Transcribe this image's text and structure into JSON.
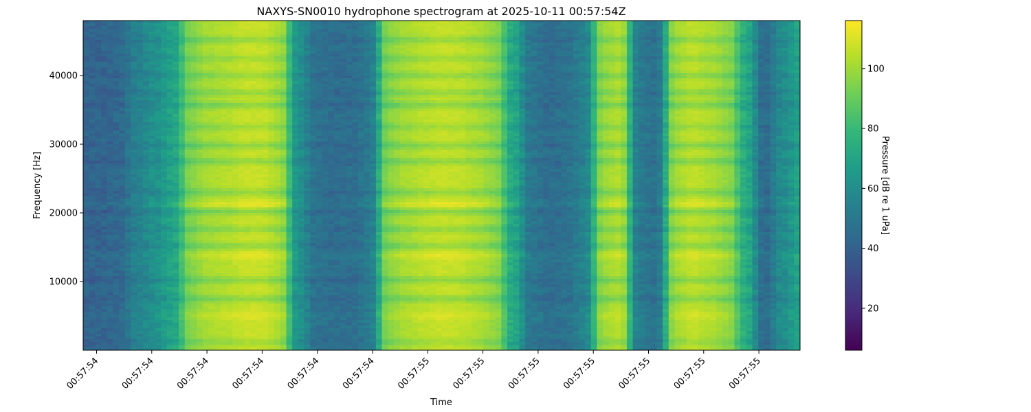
{
  "chart_data": {
    "type": "heatmap",
    "title": "NAXYS-SN0010 hydrophone spectrogram at 2025-10-11 00:57:54Z",
    "xlabel": "Time",
    "ylabel": "Frequency [Hz]",
    "x_tick_labels": [
      "00:57:54",
      "00:57:54",
      "00:57:54",
      "00:57:54",
      "00:57:54",
      "00:57:54",
      "00:57:55",
      "00:57:55",
      "00:57:55",
      "00:57:55",
      "00:57:55",
      "00:57:55",
      "00:57:55"
    ],
    "y_ticks": [
      10000,
      20000,
      30000,
      40000
    ],
    "ylim": [
      0,
      48000
    ],
    "colorbar": {
      "label": "Pressure [dB re 1 uPa]",
      "colormap": "viridis",
      "range": [
        6,
        116
      ],
      "ticks": [
        20,
        40,
        60,
        80,
        100
      ]
    },
    "time_profile_db": [
      42,
      42,
      44,
      55,
      62,
      70,
      96,
      102,
      104,
      107,
      107,
      102,
      62,
      48,
      46,
      46,
      52,
      97,
      102,
      105,
      107,
      106,
      103,
      98,
      72,
      50,
      46,
      48,
      56,
      100,
      104,
      52,
      48,
      101,
      106,
      103,
      98,
      74,
      45,
      60,
      70
    ],
    "time_profile_span": [
      0,
      40
    ],
    "frequency_bands_hz": [
      {
        "center": 1200,
        "delta_db": -6
      },
      {
        "center": 5000,
        "delta_db": 4
      },
      {
        "center": 7500,
        "delta_db": -9
      },
      {
        "center": 10200,
        "delta_db": -9
      },
      {
        "center": 13800,
        "delta_db": 5
      },
      {
        "center": 15200,
        "delta_db": -8
      },
      {
        "center": 17600,
        "delta_db": -8
      },
      {
        "center": 20200,
        "delta_db": -10
      },
      {
        "center": 21200,
        "delta_db": 6
      },
      {
        "center": 23000,
        "delta_db": -8
      },
      {
        "center": 27500,
        "delta_db": -9
      },
      {
        "center": 29800,
        "delta_db": -9
      },
      {
        "center": 32500,
        "delta_db": -6
      },
      {
        "center": 35700,
        "delta_db": -10
      },
      {
        "center": 37500,
        "delta_db": -8
      },
      {
        "center": 40000,
        "delta_db": -8
      },
      {
        "center": 42500,
        "delta_db": -6
      },
      {
        "center": 45200,
        "delta_db": -8
      }
    ],
    "colors": {
      "viridis": [
        "#440154",
        "#482878",
        "#3e4989",
        "#31688e",
        "#26828e",
        "#1f9e89",
        "#35b779",
        "#6ece58",
        "#b5de2b",
        "#fde725"
      ]
    }
  }
}
